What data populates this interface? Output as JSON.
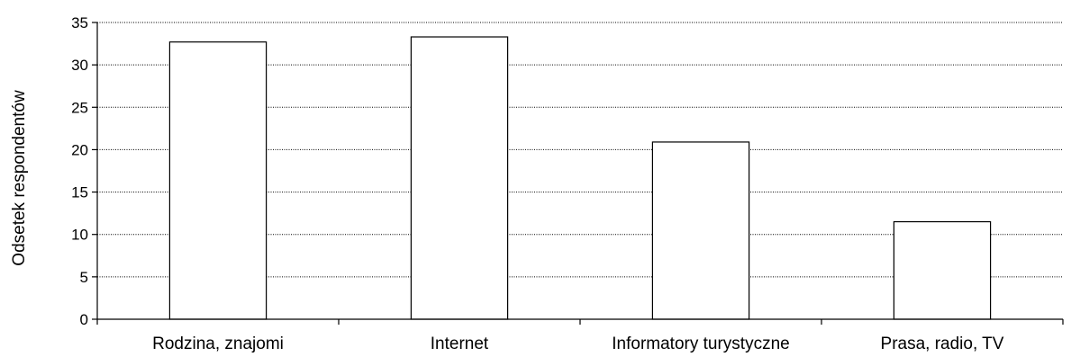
{
  "chart_data": {
    "type": "bar",
    "categories": [
      "Rodzina, znajomi",
      "Internet",
      "Informatory turystyczne",
      "Prasa, radio, TV"
    ],
    "values": [
      32.7,
      33.3,
      20.9,
      11.5
    ],
    "title": "",
    "xlabel": "",
    "ylabel": "Odsetek respondentów",
    "ylim": [
      0,
      35
    ],
    "yticks": [
      "0",
      "5",
      "10",
      "15",
      "20",
      "25",
      "30",
      "35"
    ],
    "grid": true,
    "legend": "none",
    "colors": {
      "bar_fill": "#ffffff",
      "bar_stroke": "#000000"
    }
  }
}
